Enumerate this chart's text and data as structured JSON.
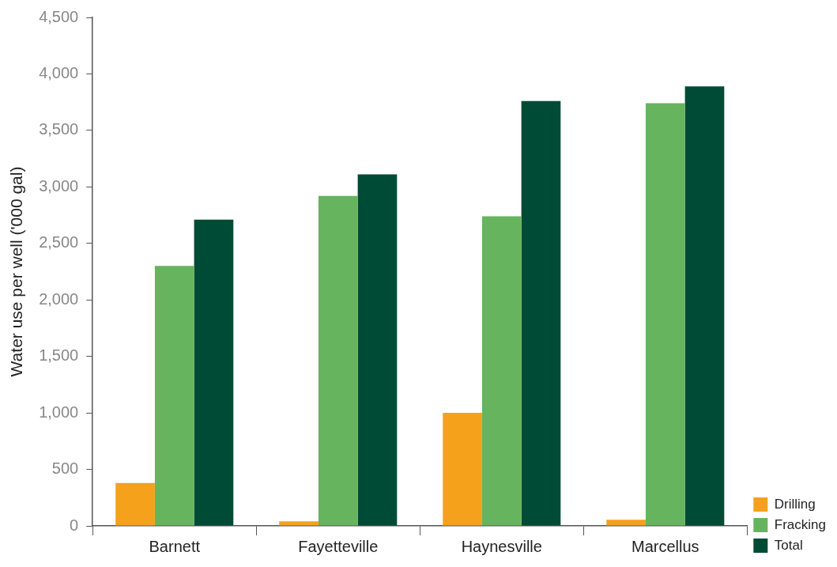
{
  "chart_data": {
    "type": "bar",
    "ylabel": "Water use per well ('000 gal)",
    "categories": [
      "Barnett",
      "Fayetteville",
      "Haynesville",
      "Marcellus"
    ],
    "series": [
      {
        "name": "Drilling",
        "color": "#f5a11c",
        "values": [
          380,
          40,
          1000,
          55
        ]
      },
      {
        "name": "Fracking",
        "color": "#66b45e",
        "values": [
          2300,
          2920,
          2740,
          3740
        ]
      },
      {
        "name": "Total",
        "color": "#004b35",
        "values": [
          2710,
          3110,
          3760,
          3890
        ]
      }
    ],
    "ylim": [
      0,
      4500
    ],
    "yticks": [
      0,
      500,
      {
        "value": 1000,
        "label": "1,000"
      },
      {
        "value": 1500,
        "label": "1,500"
      },
      {
        "value": 2000,
        "label": "2,000"
      },
      {
        "value": 2500,
        "label": "2,500"
      },
      {
        "value": 3000,
        "label": "3,000"
      },
      {
        "value": 3500,
        "label": "3,500"
      },
      {
        "value": 4000,
        "label": "4,000"
      },
      {
        "value": 4500,
        "label": "4,500"
      }
    ],
    "grid": false,
    "legend": "bottom right"
  }
}
